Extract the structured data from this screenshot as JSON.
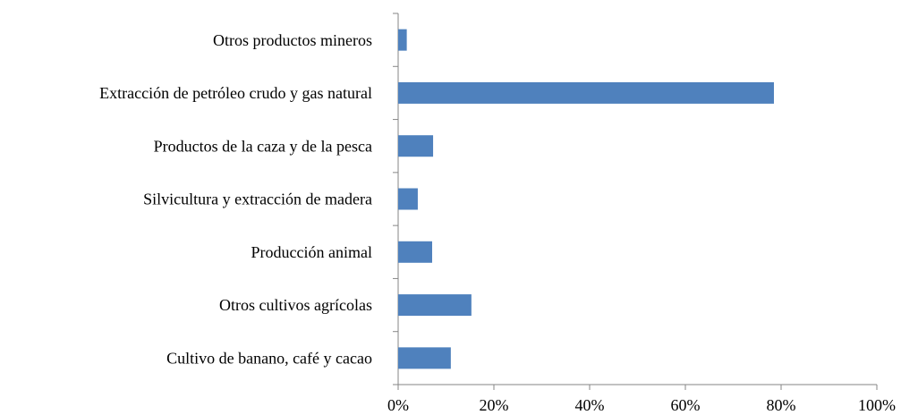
{
  "chart_data": {
    "type": "bar",
    "orientation": "horizontal",
    "categories": [
      "Otros productos mineros",
      "Extracción de petróleo crudo y gas natural",
      "Productos de la caza y de la pesca",
      "Silvicultura y extracción de madera",
      "Producción animal",
      "Otros cultivos agrícolas",
      "Cultivo de banano, café y cacao"
    ],
    "values": [
      1.8,
      78.5,
      7.3,
      4.1,
      7.1,
      15.3,
      11.0
    ],
    "color": "#4f81bd",
    "xlim": [
      0,
      100
    ],
    "xticks": [
      {
        "value": 0,
        "label": "0%"
      },
      {
        "value": 20,
        "label": "20%"
      },
      {
        "value": 40,
        "label": "40%"
      },
      {
        "value": 60,
        "label": "60%"
      },
      {
        "value": 80,
        "label": "80%"
      },
      {
        "value": 100,
        "label": "100%"
      }
    ],
    "grid": false
  }
}
